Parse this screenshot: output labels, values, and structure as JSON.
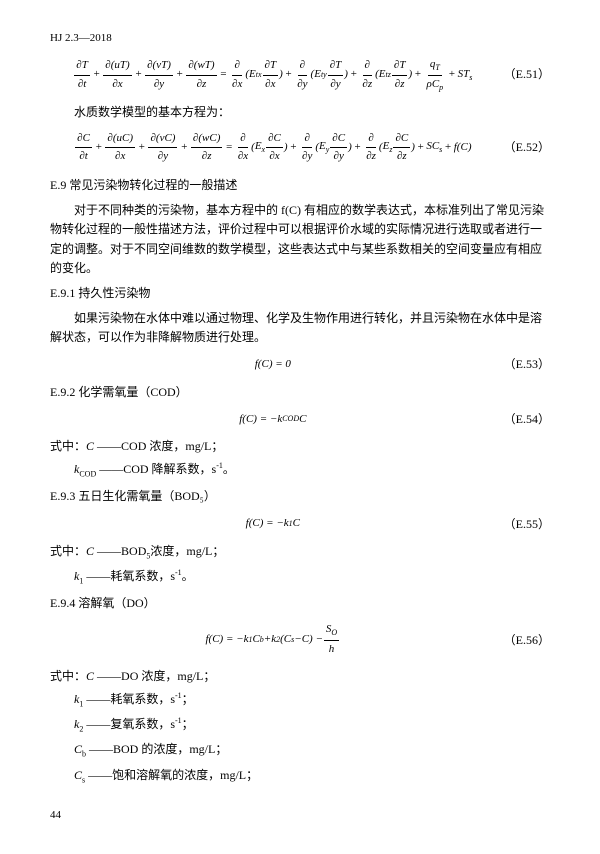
{
  "header_code": "HJ 2.3—2018",
  "eq51_label": "（E.51）",
  "eq52_label": "（E.52）",
  "eq53_label": "（E.53）",
  "eq54_label": "（E.54）",
  "eq55_label": "（E.55）",
  "eq56_label": "（E.56）",
  "eq51_text": "∂T/∂t + ∂(uT)/∂x + ∂(vT)/∂y + ∂(wT)/∂z = ∂/∂x(E_tx ∂T/∂x) + ∂/∂y(E_ty ∂T/∂y) + ∂/∂z(E_tz ∂T/∂z) + q_T/(ρC_p) + ST_s",
  "eq52_text": "∂C/∂t + ∂(uC)/∂x + ∂(vC)/∂y + ∂(wC)/∂z = ∂/∂x(E_x ∂C/∂x) + ∂/∂y(E_y ∂C/∂y) + ∂/∂z(E_z ∂C/∂z) + SC_s + f(C)",
  "para_intro": "水质数学模型的基本方程为：",
  "sec_e9": "E.9 常见污染物转化过程的一般描述",
  "para_e9_1": "对于不同种类的污染物，基本方程中的 f(C) 有相应的数学表达式，本标准列出了常见污染物转化过程的一般性描述方法，评价过程中可以根据评价水域的实际情况进行选取或者进行一定的调整。对于不同空间维数的数学模型，这些表达式中与某些系数相关的空间变量应有相应的变化。",
  "sub_e91": "E.9.1 持久性污染物",
  "para_e91": "如果污染物在水体中难以通过物理、化学及生物作用进行转化，并且污染物在水体中是溶解状态，可以作为非降解物质进行处理。",
  "eq53_text": "f(C) = 0",
  "sub_e92": "E.9.2 化学需氧量（COD）",
  "eq54_text": "f(C) = −k_COD C",
  "def_e92_pre": "式中：",
  "def_e92_1": "C ——COD 浓度，mg/L；",
  "def_e92_2": "k_COD ——COD 降解系数，s⁻¹。",
  "sub_e93": "E.9.3 五日生化需氧量（BOD₅）",
  "eq55_text": "f(C) = −k₁C",
  "def_e93_1": "C ——BOD₅浓度，mg/L；",
  "def_e93_2": "k₁ ——耗氧系数，s⁻¹。",
  "sub_e94": "E.9.4 溶解氧（DO）",
  "eq56_text": "f(C) = −k₁C_b + k₂(C_s − C) − S_O/h",
  "def_e94_1": "C ——DO 浓度，mg/L；",
  "def_e94_2": "k₁ ——耗氧系数，s⁻¹；",
  "def_e94_3": "k₂ ——复氧系数，s⁻¹；",
  "def_e94_4": "C_b ——BOD 的浓度，mg/L；",
  "def_e94_5": "C_s ——饱和溶解氧的浓度，mg/L；",
  "page_num": "44"
}
